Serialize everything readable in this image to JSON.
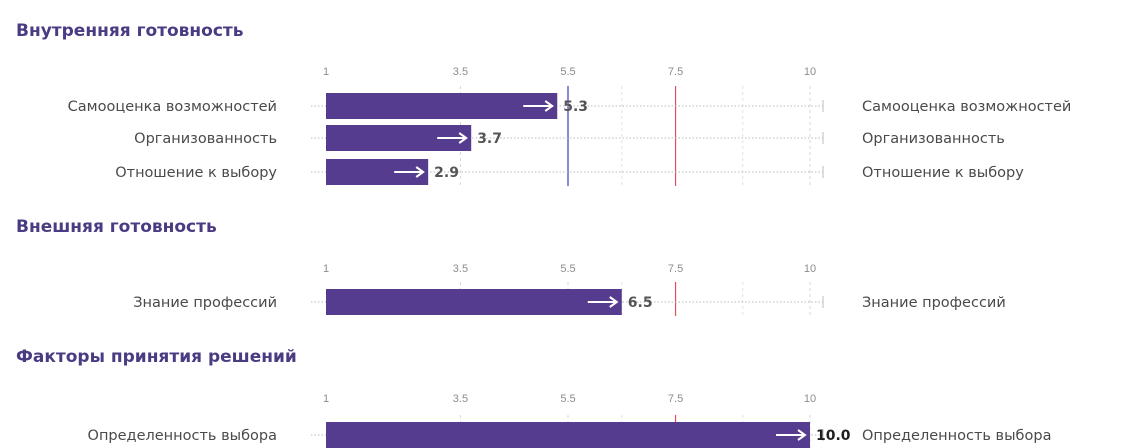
{
  "chart_data": {
    "type": "bar",
    "orientation": "horizontal",
    "xlim": [
      1,
      10
    ],
    "tick_labels": [
      "1",
      "3.5",
      "5.5",
      "7.5",
      "10"
    ],
    "colors": {
      "bar": "#553c8f",
      "blue_reference_line": "#3b3bb8",
      "red_reference_line": "#e0505a"
    },
    "reference_lines": [
      5.5,
      7.5
    ],
    "sections": [
      {
        "title": "Внутренняя готовность",
        "categories": [
          "Самооценка возможностей",
          "Организованность",
          "Отношение к выбору"
        ],
        "values": [
          5.3,
          3.7,
          2.9
        ],
        "value_labels": [
          "5.3",
          "3.7",
          "2.9"
        ]
      },
      {
        "title": "Внешняя готовность",
        "categories": [
          "Знание профессий"
        ],
        "values": [
          6.5
        ],
        "value_labels": [
          "6.5"
        ]
      },
      {
        "title": "Факторы принятия решений",
        "categories": [
          "Определенность выбора"
        ],
        "values": [
          10.0
        ],
        "value_labels": [
          "10.0"
        ]
      }
    ]
  }
}
